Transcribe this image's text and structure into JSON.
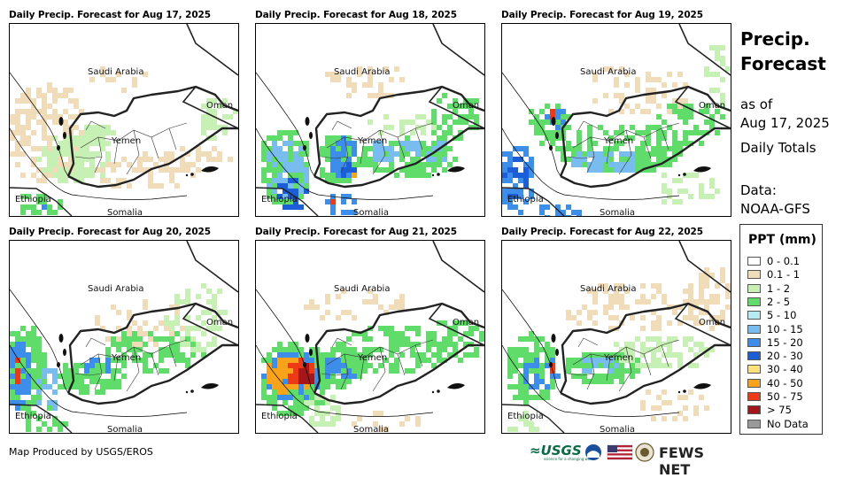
{
  "panels": [
    {
      "title": "Daily Precip. Forecast for Aug 17, 2025"
    },
    {
      "title": "Daily Precip. Forecast for Aug 18, 2025"
    },
    {
      "title": "Daily Precip. Forecast for Aug 19, 2025"
    },
    {
      "title": "Daily Precip. Forecast for Aug 20, 2025"
    },
    {
      "title": "Daily Precip. Forecast for Aug 21, 2025"
    },
    {
      "title": "Daily Precip. Forecast for Aug 22, 2025"
    }
  ],
  "countries": {
    "saudi": "Saudi Arabia",
    "oman": "Oman",
    "yemen": "Yemen",
    "ethiopia": "Ethiopia",
    "somalia": "Somalia"
  },
  "sidebar": {
    "title_line1": "Precip.",
    "title_line2": "Forecast",
    "asof_line1": "as of",
    "asof_line2": "Aug 17, 2025",
    "totals": "Daily Totals",
    "data_line1": "Data:",
    "data_line2": "NOAA-GFS"
  },
  "legend": {
    "title": "PPT (mm)",
    "items": [
      {
        "label": "0 - 0.1",
        "color": "#ffffff"
      },
      {
        "label": "0.1 - 1",
        "color": "#f0dcb8"
      },
      {
        "label": "1 - 2",
        "color": "#c7f0b4"
      },
      {
        "label": "2 - 5",
        "color": "#5fdc6a"
      },
      {
        "label": "5 - 10",
        "color": "#b5ecf4"
      },
      {
        "label": "10 - 15",
        "color": "#79bdf0"
      },
      {
        "label": "15 - 20",
        "color": "#3d8eeb"
      },
      {
        "label": "20 - 30",
        "color": "#1c5ed8"
      },
      {
        "label": "30 - 40",
        "color": "#fde07a"
      },
      {
        "label": "40 - 50",
        "color": "#f9a31a"
      },
      {
        "label": "50 - 75",
        "color": "#ee3a14"
      },
      {
        "label": "> 75",
        "color": "#a4161a"
      },
      {
        "label": "No Data",
        "color": "#9a9a9a"
      }
    ]
  },
  "footer": {
    "credit": "Map Produced by USGS/EROS",
    "usgs": "≈USGS",
    "usgs_tagline": "science for a changing world",
    "fews": "FEWS NET"
  }
}
